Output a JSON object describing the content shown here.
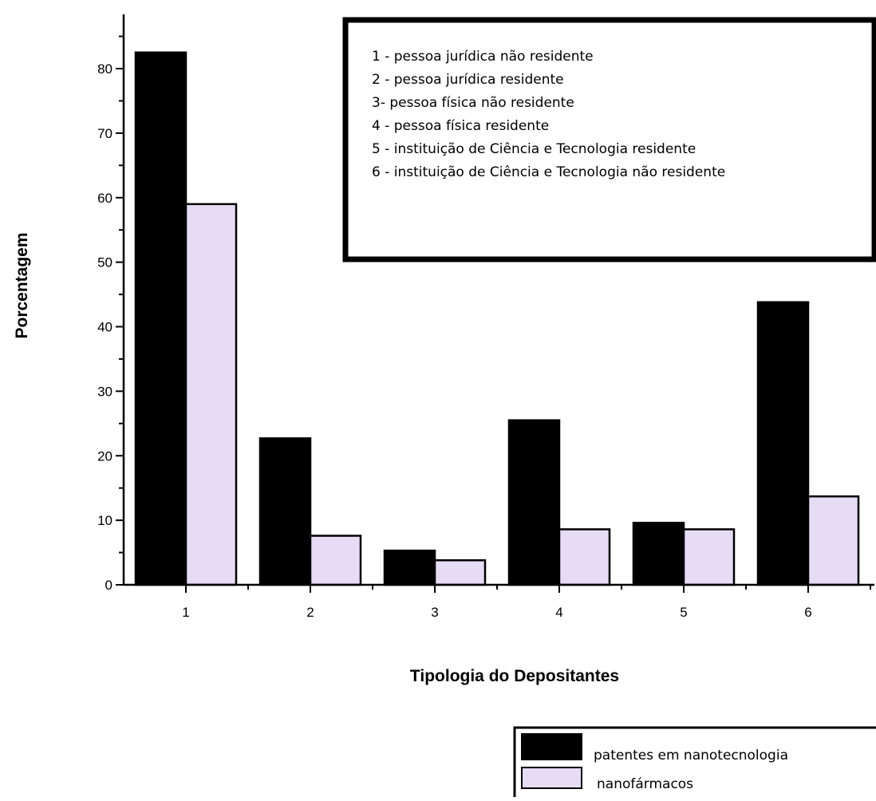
{
  "chart_data": {
    "type": "bar",
    "categories": [
      "1",
      "2",
      "3",
      "4",
      "5",
      "6"
    ],
    "series": [
      {
        "name": "patentes em nanotecnologia",
        "color": "#000000",
        "values": [
          82.5,
          22.7,
          5.3,
          25.5,
          9.6,
          43.8
        ]
      },
      {
        "name": "nanofármacos",
        "color": "#E6DCF6",
        "values": [
          59,
          7.6,
          3.8,
          8.6,
          8.6,
          13.7
        ]
      }
    ],
    "xlabel": "Tipologia do Depositantes",
    "ylabel": "Porcentagem",
    "ylim": [
      0,
      88
    ],
    "yticks": [
      0,
      10,
      20,
      30,
      40,
      50,
      60,
      70,
      80
    ],
    "grid": false,
    "legend_placement": "bottom-right",
    "info_box": {
      "lines": [
        "1 - pessoa jurídica não residente",
        "2 - pessoa jurídica residente",
        "3- pessoa física não residente",
        "4 - pessoa física residente",
        "5 - instituição de Ciência e Tecnologia residente",
        "6 - instituição de Ciência e Tecnologia não residente"
      ]
    }
  }
}
